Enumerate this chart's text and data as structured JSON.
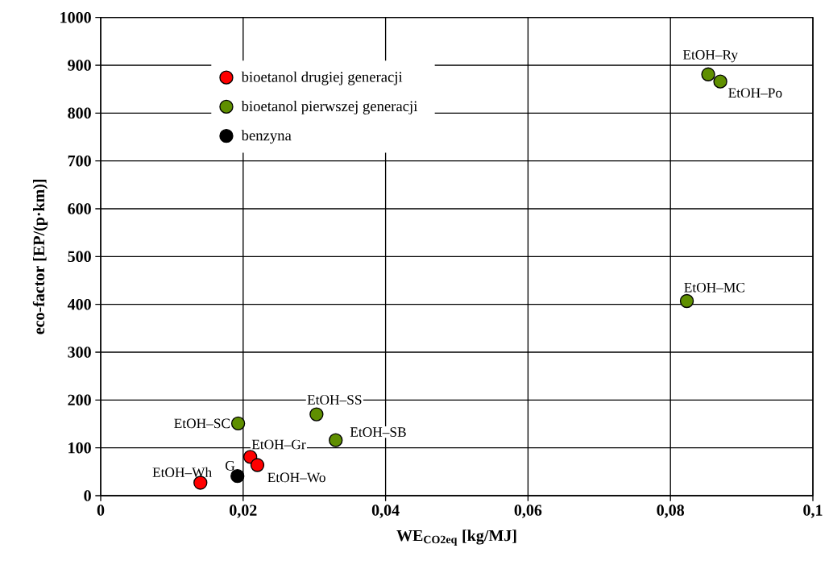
{
  "chart_data": {
    "type": "scatter",
    "xlabel": "WE$_{CO2eq}$ [kg/MJ]",
    "ylabel": "eco-factor [EP/(p·km)]",
    "xlim": [
      0,
      0.1
    ],
    "ylim": [
      0,
      1000
    ],
    "xticks": [
      0,
      {
        "value": 0.02,
        "label": "0,02"
      },
      {
        "value": 0.04,
        "label": "0,04"
      },
      {
        "value": 0.06,
        "label": "0,06"
      },
      {
        "value": 0.08,
        "label": "0,08"
      },
      {
        "value": 0.1,
        "label": "0,1"
      }
    ],
    "yticks": [
      0,
      100,
      200,
      300,
      400,
      500,
      600,
      700,
      800,
      900,
      1000
    ],
    "grid": true,
    "legend": "top left",
    "marker": "circle",
    "series": [
      {
        "name": "bioetanol drugiej generacji",
        "color": "#ff0000",
        "x": [
          0.014,
          0.021,
          0.022
        ],
        "values": [
          27,
          81,
          64
        ]
      },
      {
        "name": "bioetanol pierwszej generacji",
        "color": "#5f8f00",
        "x": [
          0.0193,
          0.0303,
          0.033,
          0.0823,
          0.0853,
          0.087
        ],
        "values": [
          151,
          170,
          116,
          407,
          881,
          866
        ]
      },
      {
        "name": "benzyna",
        "color": "#000000",
        "x": [
          0.0192
        ],
        "values": [
          41
        ]
      }
    ],
    "annotations": [
      {
        "text": "EtOH–Wh",
        "x": 0.014,
        "y": 27
      },
      {
        "text": "EtOH–Gr",
        "x": 0.021,
        "y": 81
      },
      {
        "text": "EtOH–Wo",
        "x": 0.022,
        "y": 64
      },
      {
        "text": "EtOH–SC",
        "x": 0.0193,
        "y": 151
      },
      {
        "text": "EtOH–SS",
        "x": 0.0303,
        "y": 170
      },
      {
        "text": "EtOH–SB",
        "x": 0.033,
        "y": 116
      },
      {
        "text": "EtOH–MC",
        "x": 0.0823,
        "y": 407
      },
      {
        "text": "EtOH–Ry",
        "x": 0.0853,
        "y": 881
      },
      {
        "text": "EtOH–Po",
        "x": 0.087,
        "y": 866
      },
      {
        "text": "G",
        "x": 0.0192,
        "y": 41
      }
    ]
  }
}
